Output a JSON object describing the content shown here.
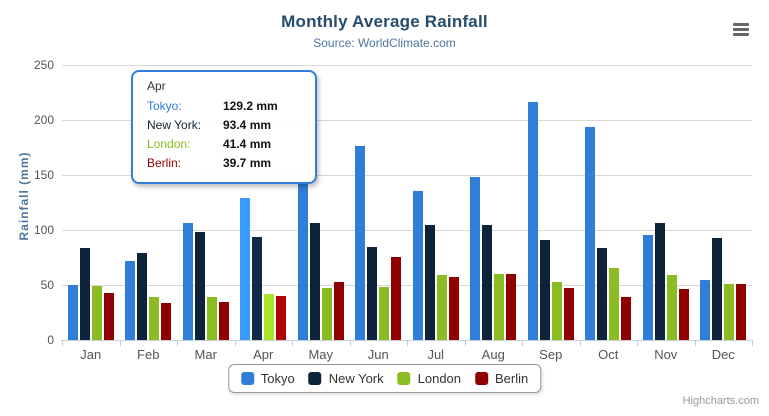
{
  "chart": {
    "title": "Monthly Average Rainfall",
    "subtitle": "Source: WorldClimate.com",
    "y_axis_title": "Rainfall (mm)",
    "credits": "Highcharts.com"
  },
  "chart_data": {
    "type": "bar",
    "title": "Monthly Average Rainfall",
    "subtitle": "Source: WorldClimate.com",
    "xlabel": "",
    "ylabel": "Rainfall (mm)",
    "ylim": [
      0,
      250
    ],
    "yticks": [
      0,
      50,
      100,
      150,
      200,
      250
    ],
    "grid": true,
    "legend_position": "bottom",
    "hover_category_index": 3,
    "categories": [
      "Jan",
      "Feb",
      "Mar",
      "Apr",
      "May",
      "Jun",
      "Jul",
      "Aug",
      "Sep",
      "Oct",
      "Nov",
      "Dec"
    ],
    "series": [
      {
        "name": "Tokyo",
        "color": "#2f7ed8",
        "values": [
          49.9,
          71.5,
          106.4,
          129.2,
          144.0,
          176.0,
          135.6,
          148.5,
          216.4,
          194.1,
          95.6,
          54.4
        ]
      },
      {
        "name": "New York",
        "color": "#0d233a",
        "values": [
          83.6,
          78.8,
          98.5,
          93.4,
          106.0,
          84.5,
          105.0,
          104.3,
          91.2,
          83.5,
          106.6,
          92.3
        ]
      },
      {
        "name": "London",
        "color": "#8bbc21",
        "values": [
          48.9,
          38.8,
          39.3,
          41.4,
          47.0,
          48.3,
          59.0,
          59.6,
          52.4,
          65.2,
          59.3,
          51.2
        ]
      },
      {
        "name": "Berlin",
        "color": "#910000",
        "values": [
          42.4,
          33.2,
          34.5,
          39.7,
          52.6,
          75.5,
          57.4,
          60.4,
          47.6,
          39.1,
          46.8,
          51.1
        ]
      }
    ]
  },
  "tooltip": {
    "header": "Apr",
    "border_color": "#2f7ed8",
    "rows": [
      {
        "label": "Tokyo:",
        "value": "129.2 mm",
        "color": "#2f7ed8"
      },
      {
        "label": "New York:",
        "value": "93.4 mm",
        "color": "#0d233a"
      },
      {
        "label": "London:",
        "value": "41.4 mm",
        "color": "#8bbc21"
      },
      {
        "label": "Berlin:",
        "value": "39.7 mm",
        "color": "#910000"
      }
    ]
  }
}
